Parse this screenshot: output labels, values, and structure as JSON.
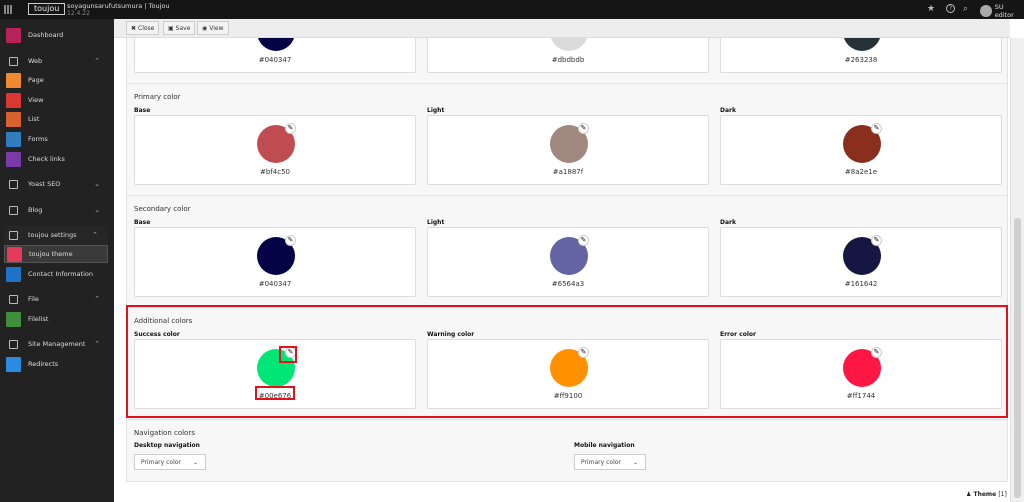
{
  "topbar": {
    "logo": "toujou",
    "site_name": "soyagunsarufutsumura | Toujou",
    "version": "12.4.22",
    "user": "SU editor",
    "icons": [
      "star-icon",
      "help-icon",
      "search-icon"
    ]
  },
  "sidebar": {
    "items": [
      {
        "label": "Dashboard",
        "icon": "dashboard-icon",
        "color": "#b5235a"
      },
      {
        "label": "Web",
        "icon": "page-icon",
        "group": true,
        "expanded": true
      },
      {
        "label": "Page",
        "icon": "page-icon",
        "color": "#f08a31"
      },
      {
        "label": "View",
        "icon": "eye-icon",
        "color": "#d9372f"
      },
      {
        "label": "List",
        "icon": "list-icon",
        "color": "#d8612e"
      },
      {
        "label": "Forms",
        "icon": "forms-icon",
        "color": "#2f7dbf"
      },
      {
        "label": "Check links",
        "icon": "link-icon",
        "color": "#7a3aa8"
      },
      {
        "label": "Yoast SEO",
        "icon": "yoast-icon",
        "group": true,
        "expanded": false
      },
      {
        "label": "Blog",
        "icon": "blog-icon",
        "group": true,
        "expanded": false
      },
      {
        "label": "toujou settings",
        "icon": "gear-icon",
        "group": true,
        "expanded": true
      },
      {
        "label": "toujou theme",
        "icon": "fingerprint-icon",
        "color": "#e63a5a",
        "active": true
      },
      {
        "label": "Contact Information",
        "icon": "contacts-icon",
        "color": "#1e73c8"
      },
      {
        "label": "File",
        "icon": "image-icon",
        "group": true,
        "expanded": true
      },
      {
        "label": "Filelist",
        "icon": "folder-icon",
        "color": "#3f8f3a"
      },
      {
        "label": "Site Management",
        "icon": "globe-icon",
        "group": true,
        "expanded": true
      },
      {
        "label": "Redirects",
        "icon": "redirect-icon",
        "color": "#2b8be0"
      }
    ]
  },
  "toolbar": {
    "close": "Close",
    "save": "Save",
    "view": "View"
  },
  "top_row": [
    {
      "hex": "#040347",
      "color": "#040347"
    },
    {
      "hex": "#dbdbdb",
      "color": "#dbdbdb"
    },
    {
      "hex": "#263238",
      "color": "#263238"
    }
  ],
  "sections": [
    {
      "title": "Primary color",
      "swatches": [
        {
          "label": "Base",
          "hex": "#bf4c50",
          "color": "#bf4c50"
        },
        {
          "label": "Light",
          "hex": "#a1887f",
          "color": "#a1887f"
        },
        {
          "label": "Dark",
          "hex": "#8a2e1e",
          "color": "#8a2e1e"
        }
      ]
    },
    {
      "title": "Secondary color",
      "swatches": [
        {
          "label": "Base",
          "hex": "#040347",
          "color": "#040347"
        },
        {
          "label": "Light",
          "hex": "#6564a3",
          "color": "#6564a3"
        },
        {
          "label": "Dark",
          "hex": "#161642",
          "color": "#161642"
        }
      ]
    },
    {
      "title": "Additional colors",
      "swatches": [
        {
          "label": "Success color",
          "hex": "#00e676",
          "color": "#00e676"
        },
        {
          "label": "Warning color",
          "hex": "#ff9100",
          "color": "#ff9100"
        },
        {
          "label": "Error color",
          "hex": "#ff1744",
          "color": "#ff1744"
        }
      ]
    }
  ],
  "navigation": {
    "title": "Navigation colors",
    "desktop_label": "Desktop navigation",
    "desktop_value": "Primary color",
    "mobile_label": "Mobile navigation",
    "mobile_value": "Primary color"
  },
  "footer": {
    "label": "Theme",
    "count": "[1]"
  },
  "highlight_color": "#e3111b"
}
